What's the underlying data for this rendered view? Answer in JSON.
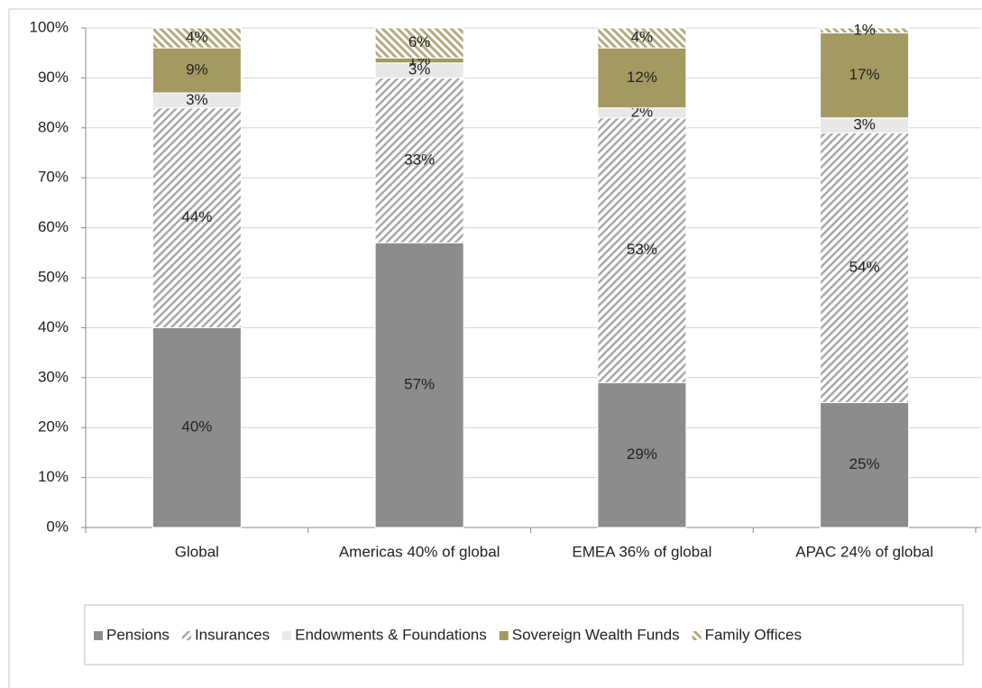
{
  "chart_data": {
    "type": "stacked_bar",
    "categories": [
      "Global",
      "Americas 40% of global",
      "EMEA 36% of global",
      "APAC 24% of global"
    ],
    "series": [
      {
        "name": "Pensions",
        "color": "#8c8c8c",
        "values": [
          40,
          57,
          29,
          25
        ],
        "value_labels": [
          "40%",
          "57%",
          "29%",
          "25%"
        ]
      },
      {
        "name": "Insurances",
        "color": "#a6a6a6",
        "values": [
          44,
          33,
          53,
          54
        ],
        "value_labels": [
          "44%",
          "33%",
          "53%",
          "54%"
        ]
      },
      {
        "name": "Endowments & Foundations",
        "color": "#d9d9d9",
        "values": [
          3,
          3,
          2,
          3
        ],
        "value_labels": [
          "3%",
          "3%",
          "2%",
          "3%"
        ]
      },
      {
        "name": "Sovereign Wealth Funds",
        "color": "#a39a62",
        "values": [
          9,
          1,
          12,
          17
        ],
        "value_labels": [
          "9%",
          "1%",
          "12%",
          "17%"
        ]
      },
      {
        "name": "Family Offices",
        "color": "#b3ab80",
        "values": [
          4,
          6,
          4,
          1
        ],
        "value_labels": [
          "4%",
          "6%",
          "4%",
          "1%"
        ]
      }
    ],
    "ylim": [
      0,
      100
    ],
    "yticks": [
      {
        "value": 0,
        "label": "0%"
      },
      {
        "value": 10,
        "label": "10%"
      },
      {
        "value": 20,
        "label": "20%"
      },
      {
        "value": 30,
        "label": "30%"
      },
      {
        "value": 40,
        "label": "40%"
      },
      {
        "value": 50,
        "label": "50%"
      },
      {
        "value": 60,
        "label": "60%"
      },
      {
        "value": 70,
        "label": "70%"
      },
      {
        "value": 80,
        "label": "80%"
      },
      {
        "value": 90,
        "label": "90%"
      },
      {
        "value": 100,
        "label": "100%"
      }
    ],
    "grid": true,
    "legend": "bottom"
  }
}
